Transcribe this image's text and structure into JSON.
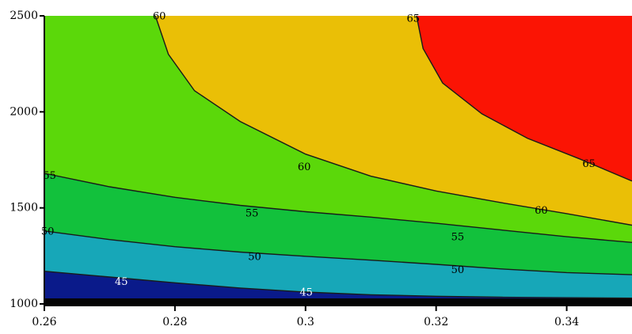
{
  "chart_data": {
    "type": "contour",
    "title": "",
    "xlabel": "",
    "ylabel": "",
    "xlim": [
      0.26,
      0.35
    ],
    "ylim": [
      1000,
      2500
    ],
    "x_ticks": [
      "0.26",
      "0.28",
      "0.3",
      "0.32",
      "0.34"
    ],
    "y_ticks": [
      "1000",
      "1500",
      "2000",
      "2500"
    ],
    "grid": false,
    "contour_levels": [
      45,
      50,
      55,
      60,
      65
    ],
    "contour_lines": [
      {
        "level": 45,
        "points": [
          [
            0.26,
            1170
          ],
          [
            0.27,
            1140
          ],
          [
            0.28,
            1110
          ],
          [
            0.29,
            1083
          ],
          [
            0.3,
            1062
          ],
          [
            0.31,
            1048
          ],
          [
            0.32,
            1040
          ],
          [
            0.33,
            1035
          ],
          [
            0.35,
            1030
          ]
        ]
      },
      {
        "level": 50,
        "points": [
          [
            0.26,
            1380
          ],
          [
            0.27,
            1335
          ],
          [
            0.28,
            1298
          ],
          [
            0.29,
            1270
          ],
          [
            0.3,
            1248
          ],
          [
            0.31,
            1228
          ],
          [
            0.32,
            1206
          ],
          [
            0.33,
            1182
          ],
          [
            0.34,
            1163
          ],
          [
            0.35,
            1152
          ]
        ]
      },
      {
        "level": 55,
        "points": [
          [
            0.26,
            1680
          ],
          [
            0.27,
            1610
          ],
          [
            0.28,
            1555
          ],
          [
            0.29,
            1513
          ],
          [
            0.3,
            1480
          ],
          [
            0.31,
            1452
          ],
          [
            0.32,
            1420
          ],
          [
            0.33,
            1385
          ],
          [
            0.34,
            1350
          ],
          [
            0.35,
            1320
          ]
        ]
      },
      {
        "level": 60,
        "points": [
          [
            0.277,
            2500
          ],
          [
            0.279,
            2300
          ],
          [
            0.283,
            2110
          ],
          [
            0.29,
            1950
          ],
          [
            0.3,
            1780
          ],
          [
            0.31,
            1665
          ],
          [
            0.32,
            1588
          ],
          [
            0.33,
            1527
          ],
          [
            0.34,
            1470
          ],
          [
            0.35,
            1410
          ]
        ]
      },
      {
        "level": 65,
        "points": [
          [
            0.317,
            2500
          ],
          [
            0.318,
            2330
          ],
          [
            0.321,
            2150
          ],
          [
            0.327,
            1990
          ],
          [
            0.334,
            1862
          ],
          [
            0.342,
            1755
          ],
          [
            0.35,
            1640
          ]
        ]
      }
    ],
    "regions": [
      {
        "range": "< 45",
        "color": "#0a1a8a"
      },
      {
        "range": "45-50",
        "color": "#17a7b8"
      },
      {
        "range": "50-55",
        "color": "#12c13c"
      },
      {
        "range": "55-60",
        "color": "#5bd80a"
      },
      {
        "range": "60-65",
        "color": "#eabf06"
      },
      {
        "range": "> 65",
        "color": "#fb1404"
      }
    ],
    "contour_labels": [
      {
        "text": "60",
        "x": 0.2776,
        "y": 2495,
        "color": "#000000"
      },
      {
        "text": "65",
        "x": 0.3165,
        "y": 2483,
        "color": "#000000"
      },
      {
        "text": "55",
        "x": 0.2608,
        "y": 1665,
        "color": "#000000"
      },
      {
        "text": "60",
        "x": 0.2998,
        "y": 1710,
        "color": "#000000"
      },
      {
        "text": "65",
        "x": 0.3434,
        "y": 1728,
        "color": "#000000"
      },
      {
        "text": "55",
        "x": 0.2918,
        "y": 1470,
        "color": "#000000"
      },
      {
        "text": "60",
        "x": 0.3361,
        "y": 1484,
        "color": "#000000"
      },
      {
        "text": "50",
        "x": 0.2605,
        "y": 1375,
        "color": "#000000"
      },
      {
        "text": "55",
        "x": 0.3233,
        "y": 1347,
        "color": "#000000"
      },
      {
        "text": "50",
        "x": 0.2922,
        "y": 1243,
        "color": "#000000"
      },
      {
        "text": "50",
        "x": 0.3233,
        "y": 1175,
        "color": "#000000"
      },
      {
        "text": "45",
        "x": 0.2718,
        "y": 1114,
        "color": "#ffffff"
      },
      {
        "text": "45",
        "x": 0.3001,
        "y": 1058,
        "color": "#ffffff"
      }
    ]
  }
}
